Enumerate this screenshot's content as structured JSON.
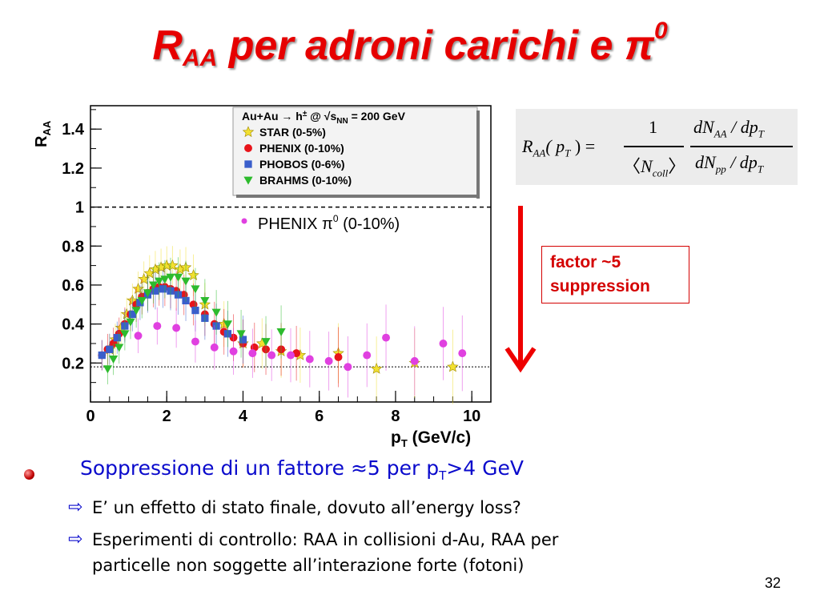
{
  "slide": {
    "title_main": "R",
    "title_sub": "AA",
    "title_rest": " per adroni carichi e ",
    "title_pi": "π",
    "title_sup": "0",
    "page_number": "32"
  },
  "formula": {
    "lhs_R": "R",
    "lhs_sub": "AA",
    "lhs_arg": "( p",
    "lhs_arg_sub": "T",
    "lhs_close": " ) =",
    "num1": "1",
    "den1_open": "〈",
    "den1_N": "N",
    "den1_sub": "coll",
    "den1_close": "〉",
    "num2": "dN",
    "num2_sub": "AA",
    "num2_rest": " / dp",
    "num2_rest_sub": "T",
    "den2": "dN",
    "den2_sub": "pp",
    "den2_rest": " / dp",
    "den2_rest_sub": "T"
  },
  "annotation": {
    "line1": "factor ~5",
    "line2": "suppression",
    "color": "#d40000"
  },
  "bullets": {
    "main": "Soppressione di un fattore ≈5 per p",
    "main_sub": "T",
    "main_rest": ">4 GeV",
    "sub_items": [
      {
        "arrow": "⇨",
        "text": "E’ un effetto di stato finale, dovuto all’energy loss?"
      },
      {
        "arrow": "⇨",
        "text": "Esperimenti di controllo: RAA in collisioni d-Au, RAA per"
      },
      {
        "arrow": "",
        "text": "particelle non soggette all’interazione forte (fotoni)"
      }
    ]
  },
  "chart_data": {
    "type": "scatter",
    "title": "",
    "xlabel": "p",
    "xlabel_sub": "T",
    "xlabel_unit": " (GeV/c)",
    "ylabel": "R",
    "ylabel_sub": "AA",
    "xlim": [
      0,
      10.5
    ],
    "ylim": [
      0,
      1.52
    ],
    "x_ticks": [
      0,
      2,
      4,
      6,
      8,
      10
    ],
    "y_ticks": [
      0.2,
      0.4,
      0.6,
      0.8,
      1,
      1.2,
      1.4
    ],
    "x_tick_labels": [
      "0",
      "2",
      "4",
      "6",
      "8",
      "10"
    ],
    "y_tick_labels": [
      "0.2",
      "0.4",
      "0.6",
      "0.8",
      "1",
      "1.2",
      "1.4"
    ],
    "reference_lines": [
      1.0,
      0.18
    ],
    "legend": {
      "placement": "top-center",
      "header_a": "Au+Au → h",
      "header_b": "±",
      "header_c": " @ √s",
      "header_d": "NN",
      "header_e": " = 200 GeV",
      "extra_label_a": "PHENIX π",
      "extra_label_b": "0",
      "extra_label_c": " (0-10%)"
    },
    "series": [
      {
        "name": "STAR (0-5%)",
        "marker": "star",
        "color": "#f2e030",
        "points": [
          [
            0.5,
            0.27
          ],
          [
            0.65,
            0.32
          ],
          [
            0.8,
            0.38
          ],
          [
            0.95,
            0.45
          ],
          [
            1.1,
            0.52
          ],
          [
            1.25,
            0.58
          ],
          [
            1.4,
            0.63
          ],
          [
            1.55,
            0.66
          ],
          [
            1.7,
            0.68
          ],
          [
            1.85,
            0.69
          ],
          [
            2.0,
            0.7
          ],
          [
            2.15,
            0.7
          ],
          [
            2.35,
            0.68
          ],
          [
            2.5,
            0.69
          ],
          [
            2.7,
            0.65
          ],
          [
            3.0,
            0.5
          ],
          [
            3.5,
            0.4
          ],
          [
            4.0,
            0.3
          ],
          [
            4.5,
            0.3
          ],
          [
            5.0,
            0.26
          ],
          [
            5.5,
            0.24
          ],
          [
            6.5,
            0.25
          ],
          [
            7.5,
            0.17
          ],
          [
            8.5,
            0.2
          ],
          [
            9.5,
            0.18
          ]
        ]
      },
      {
        "name": "PHENIX (0-10%)",
        "marker": "circle",
        "color": "#e8141a",
        "points": [
          [
            0.3,
            0.24
          ],
          [
            0.45,
            0.27
          ],
          [
            0.6,
            0.3
          ],
          [
            0.75,
            0.35
          ],
          [
            0.9,
            0.4
          ],
          [
            1.05,
            0.45
          ],
          [
            1.2,
            0.5
          ],
          [
            1.35,
            0.54
          ],
          [
            1.5,
            0.56
          ],
          [
            1.65,
            0.58
          ],
          [
            1.8,
            0.59
          ],
          [
            1.95,
            0.59
          ],
          [
            2.1,
            0.58
          ],
          [
            2.25,
            0.57
          ],
          [
            2.45,
            0.55
          ],
          [
            2.7,
            0.5
          ],
          [
            3.0,
            0.45
          ],
          [
            3.25,
            0.4
          ],
          [
            3.5,
            0.36
          ],
          [
            3.75,
            0.33
          ],
          [
            4.0,
            0.3
          ],
          [
            4.3,
            0.28
          ],
          [
            4.6,
            0.27
          ],
          [
            5.0,
            0.27
          ],
          [
            5.4,
            0.25
          ],
          [
            6.5,
            0.23
          ]
        ]
      },
      {
        "name": "PHOBOS (0-6%)",
        "marker": "square",
        "color": "#3a5ecb",
        "points": [
          [
            0.3,
            0.24
          ],
          [
            0.5,
            0.27
          ],
          [
            0.7,
            0.33
          ],
          [
            0.9,
            0.39
          ],
          [
            1.1,
            0.45
          ],
          [
            1.3,
            0.51
          ],
          [
            1.5,
            0.55
          ],
          [
            1.7,
            0.57
          ],
          [
            1.9,
            0.58
          ],
          [
            2.1,
            0.57
          ],
          [
            2.3,
            0.55
          ],
          [
            2.5,
            0.52
          ],
          [
            2.75,
            0.47
          ],
          [
            3.0,
            0.43
          ],
          [
            3.3,
            0.39
          ],
          [
            3.6,
            0.35
          ],
          [
            4.0,
            0.32
          ]
        ]
      },
      {
        "name": "BRAHMS (0-10%)",
        "marker": "triangle-down",
        "color": "#2dbb2d",
        "points": [
          [
            0.45,
            0.17
          ],
          [
            0.6,
            0.22
          ],
          [
            0.75,
            0.28
          ],
          [
            0.9,
            0.35
          ],
          [
            1.05,
            0.41
          ],
          [
            1.2,
            0.47
          ],
          [
            1.35,
            0.52
          ],
          [
            1.5,
            0.56
          ],
          [
            1.65,
            0.6
          ],
          [
            1.8,
            0.62
          ],
          [
            1.95,
            0.63
          ],
          [
            2.1,
            0.64
          ],
          [
            2.3,
            0.64
          ],
          [
            2.5,
            0.62
          ],
          [
            2.75,
            0.58
          ],
          [
            3.0,
            0.52
          ],
          [
            3.3,
            0.46
          ],
          [
            3.6,
            0.4
          ],
          [
            3.95,
            0.35
          ],
          [
            4.6,
            0.31
          ],
          [
            5.0,
            0.36
          ]
        ]
      },
      {
        "name": "PHENIX π0 (0-10%)",
        "marker": "circle",
        "color": "#e040e0",
        "points": [
          [
            1.25,
            0.34
          ],
          [
            1.75,
            0.39
          ],
          [
            2.25,
            0.38
          ],
          [
            2.75,
            0.31
          ],
          [
            3.25,
            0.28
          ],
          [
            3.75,
            0.26
          ],
          [
            4.25,
            0.25
          ],
          [
            4.75,
            0.24
          ],
          [
            5.25,
            0.24
          ],
          [
            5.75,
            0.22
          ],
          [
            6.25,
            0.21
          ],
          [
            6.75,
            0.18
          ],
          [
            7.25,
            0.24
          ],
          [
            7.75,
            0.33
          ],
          [
            8.5,
            0.21
          ],
          [
            9.25,
            0.3
          ],
          [
            9.75,
            0.25
          ]
        ]
      }
    ]
  }
}
